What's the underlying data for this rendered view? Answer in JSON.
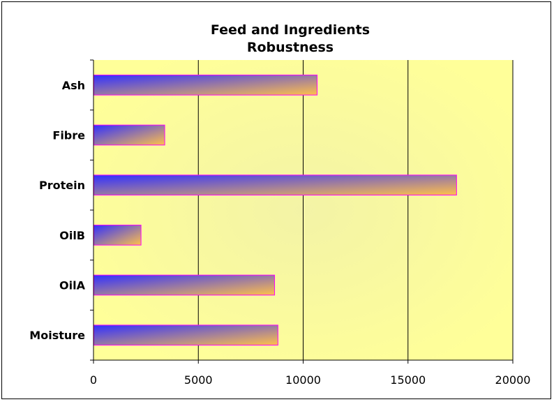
{
  "chart_data": {
    "type": "bar",
    "orientation": "horizontal",
    "title_lines": [
      "Feed and Ingredients",
      "Robustness"
    ],
    "categories": [
      "Ash",
      "Fibre",
      "Protein",
      "OilB",
      "OilA",
      "Moisture"
    ],
    "values": [
      10650,
      3380,
      17300,
      2250,
      8620,
      8780
    ],
    "xlim": [
      0,
      20000
    ],
    "x_ticks": [
      0,
      5000,
      10000,
      15000,
      20000
    ],
    "x_tick_labels": [
      "0",
      "5000",
      "10000",
      "15000",
      "20000"
    ],
    "xlabel": "",
    "ylabel": "",
    "grid": "vertical major gridlines",
    "legend": "none",
    "colors": {
      "plot_background": "#ffff99",
      "plot_background_center": "#f3f3a6",
      "bar_gradient_start": "#3030ff",
      "bar_gradient_end": "#ffc04a",
      "bar_border": "#ff00ff",
      "gridline": "#000000"
    }
  }
}
